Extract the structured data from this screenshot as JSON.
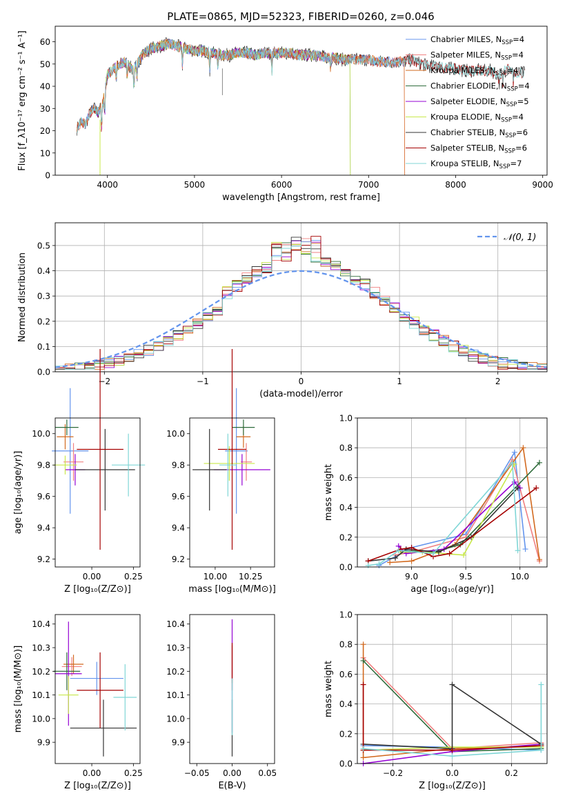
{
  "colors": {
    "Chabrier MILES": "#6495ed",
    "Salpeter MILES": "#f08080",
    "Kroupa MILES": "#d2691e",
    "Chabrier ELODIE": "#2e6b3a",
    "Salpeter ELODIE": "#9400d3",
    "Kroupa ELODIE": "#c8e84a",
    "Chabrier STELIB": "#333333",
    "Salpeter STELIB": "#a50000",
    "Kroupa STELIB": "#7fd6d6"
  },
  "title": "PLATE=0865, MJD=52323, FIBERID=0260, z=0.046",
  "chart_data": [
    {
      "id": "spectrum",
      "type": "line",
      "xlabel": "wavelength [Angstrom, rest frame]",
      "ylabel": "Flux [f_λ10⁻¹⁷ erg cm⁻² s⁻¹ A⁻¹]",
      "xlim": [
        3400,
        9050
      ],
      "ylim": [
        0,
        67
      ],
      "xticks": [
        4000,
        5000,
        6000,
        7000,
        8000,
        9000
      ],
      "yticks": [
        0,
        10,
        20,
        30,
        40,
        50,
        60
      ],
      "legend_position": "top-right",
      "series_envelope": {
        "x": [
          3650,
          3700,
          3750,
          3800,
          3850,
          3900,
          3950,
          4000,
          4100,
          4200,
          4300,
          4400,
          4500,
          4600,
          4700,
          4800,
          4900,
          5000,
          5100,
          5200,
          5300,
          5400,
          5500,
          5600,
          5700,
          5800,
          5900,
          6000,
          6100,
          6200,
          6300,
          6400,
          6500,
          6600,
          6700,
          6800,
          6900,
          7000,
          7100,
          7200,
          7300,
          7400,
          7500,
          7600,
          7700,
          7800,
          7900,
          8000,
          8100,
          8200,
          8300,
          8400,
          8500,
          8600,
          8700,
          8800
        ],
        "y": [
          21,
          24,
          23,
          28,
          30,
          28,
          33,
          45,
          49,
          51,
          47,
          54,
          57,
          58,
          59,
          58,
          57,
          56,
          56,
          55,
          54,
          54,
          55,
          55,
          54,
          55,
          55,
          55,
          55,
          54,
          54,
          54,
          53,
          53,
          52,
          52,
          52,
          52,
          51,
          51,
          51,
          51,
          52,
          50,
          49,
          49,
          48,
          48,
          47,
          47,
          47,
          47,
          45,
          48,
          46,
          46
        ]
      },
      "legend": [
        {
          "name": "Chabrier MILES",
          "n_ssp": "4"
        },
        {
          "name": "Salpeter MILES",
          "n_ssp": "4"
        },
        {
          "name": "Kroupa MILES",
          "n_ssp": "4"
        },
        {
          "name": "Chabrier ELODIE",
          "n_ssp": "4"
        },
        {
          "name": "Salpeter ELODIE",
          "n_ssp": "5"
        },
        {
          "name": "Kroupa ELODIE",
          "n_ssp": "4"
        },
        {
          "name": "Chabrier STELIB",
          "n_ssp": "6"
        },
        {
          "name": "Salpeter STELIB",
          "n_ssp": "6"
        },
        {
          "name": "Kroupa STELIB",
          "n_ssp": "7"
        }
      ]
    },
    {
      "id": "residuals",
      "type": "line",
      "xlabel": "(data-model)/error",
      "ylabel": "Normed distribution",
      "xlim": [
        -2.5,
        2.5
      ],
      "ylim": [
        0,
        0.59
      ],
      "xticks": [
        -2,
        -1,
        0,
        1,
        2
      ],
      "yticks": [
        0.0,
        0.1,
        0.2,
        0.3,
        0.4,
        0.5
      ],
      "grid": true,
      "legend_position": "top-right",
      "legend": [
        {
          "name": "𝒩(0, 1)",
          "color": "#6495ed",
          "style": "dashed"
        }
      ],
      "bins_start": -2.5,
      "bin_width": 0.1
    },
    {
      "id": "age-Z",
      "type": "errorbar",
      "xlabel": "Z [log₁₀(Z/Z⊙)]",
      "ylabel": "age  [log₁₀(age/yr)]",
      "xlim": [
        -0.22,
        0.29
      ],
      "ylim": [
        9.15,
        10.1
      ],
      "xticks": [
        0.0,
        0.25
      ],
      "yticks": [
        9.2,
        9.4,
        9.6,
        9.8,
        10.0
      ],
      "points": [
        {
          "series": "Chabrier MILES",
          "x": -0.13,
          "y": 9.89,
          "xerr": 0.11,
          "yerr": 0.4
        },
        {
          "series": "Salpeter MILES",
          "x": -0.11,
          "y": 9.82,
          "xerr": 0.06,
          "yerr": 0.12
        },
        {
          "series": "Kroupa MILES",
          "x": -0.16,
          "y": 9.98,
          "xerr": 0.05,
          "yerr": 0.08
        },
        {
          "series": "Chabrier ELODIE",
          "x": -0.15,
          "y": 10.04,
          "xerr": 0.07,
          "yerr": 0.05
        },
        {
          "series": "Salpeter ELODIE",
          "x": -0.1,
          "y": 9.77,
          "xerr": 0.06,
          "yerr": 0.1
        },
        {
          "series": "Kroupa ELODIE",
          "x": -0.16,
          "y": 9.8,
          "xerr": 0.07,
          "yerr": 0.06
        },
        {
          "series": "Chabrier STELIB",
          "x": 0.08,
          "y": 9.77,
          "xerr": 0.18,
          "yerr": 0.26
        },
        {
          "series": "Salpeter STELIB",
          "x": 0.05,
          "y": 9.9,
          "xerr": 0.14,
          "yerr": 0.64
        },
        {
          "series": "Kroupa STELIB",
          "x": 0.22,
          "y": 9.8,
          "xerr": 0.1,
          "yerr": 0.2
        }
      ]
    },
    {
      "id": "age-mass",
      "type": "errorbar",
      "xlabel": "mass [log₁₀(M/M⊙)]",
      "ylabel": "",
      "xlim": [
        9.82,
        10.42
      ],
      "ylim": [
        9.15,
        10.1
      ],
      "xticks": [
        10.0,
        10.25
      ],
      "yticks": [
        9.2,
        9.4,
        9.6,
        9.8,
        10.0
      ],
      "points": [
        {
          "series": "Chabrier MILES",
          "x": 10.15,
          "y": 9.89,
          "xerr": 0.08,
          "yerr": 0.4
        },
        {
          "series": "Salpeter MILES",
          "x": 10.22,
          "y": 9.82,
          "xerr": 0.04,
          "yerr": 0.12
        },
        {
          "series": "Kroupa MILES",
          "x": 10.2,
          "y": 9.98,
          "xerr": 0.05,
          "yerr": 0.07
        },
        {
          "series": "Chabrier ELODIE",
          "x": 10.2,
          "y": 10.04,
          "xerr": 0.08,
          "yerr": 0.05
        },
        {
          "series": "Salpeter ELODIE",
          "x": 10.19,
          "y": 9.77,
          "xerr": 0.2,
          "yerr": 0.1
        },
        {
          "series": "Kroupa ELODIE",
          "x": 10.1,
          "y": 9.81,
          "xerr": 0.18,
          "yerr": 0.11
        },
        {
          "series": "Chabrier STELIB",
          "x": 9.96,
          "y": 9.77,
          "xerr": 0.12,
          "yerr": 0.26
        },
        {
          "series": "Salpeter STELIB",
          "x": 10.12,
          "y": 9.9,
          "xerr": 0.1,
          "yerr": 0.64
        },
        {
          "series": "Kroupa STELIB",
          "x": 10.09,
          "y": 9.8,
          "xerr": 0.06,
          "yerr": 0.2
        }
      ]
    },
    {
      "id": "weights-age",
      "type": "line",
      "xlabel": "age  [log₁₀(age/yr)]",
      "ylabel": "mass weight",
      "xlim": [
        8.5,
        10.25
      ],
      "ylim": [
        0,
        1.0
      ],
      "xticks": [
        9.0,
        9.5,
        10.0
      ],
      "yticks": [
        0.0,
        0.2,
        0.4,
        0.6,
        0.8,
        1.0
      ],
      "grid": true,
      "series": [
        {
          "name": "Chabrier MILES",
          "x": [
            8.7,
            9.0,
            9.5,
            9.95,
            10.05
          ],
          "y": [
            0.01,
            0.13,
            0.22,
            0.77,
            0.12
          ]
        },
        {
          "name": "Salpeter MILES",
          "x": [
            8.85,
            9.0,
            9.5,
            9.93,
            10.18
          ],
          "y": [
            0.08,
            0.1,
            0.2,
            0.72,
            0.04
          ]
        },
        {
          "name": "Kroupa MILES",
          "x": [
            8.8,
            9.0,
            9.4,
            10.03,
            10.18
          ],
          "y": [
            0.03,
            0.04,
            0.15,
            0.8,
            0.05
          ]
        },
        {
          "name": "Chabrier ELODIE",
          "x": [
            8.9,
            9.2,
            9.45,
            10.18
          ],
          "y": [
            0.11,
            0.1,
            0.15,
            0.7
          ]
        },
        {
          "name": "Salpeter ELODIE",
          "x": [
            8.88,
            8.95,
            9.3,
            9.95,
            10.0
          ],
          "y": [
            0.14,
            0.09,
            0.12,
            0.57,
            0.53
          ]
        },
        {
          "name": "Kroupa ELODIE",
          "x": [
            8.9,
            9.1,
            9.48,
            9.95
          ],
          "y": [
            0.1,
            0.1,
            0.08,
            0.69
          ]
        },
        {
          "name": "Chabrier STELIB",
          "x": [
            8.6,
            8.85,
            8.95,
            9.25,
            9.55,
            9.98
          ],
          "y": [
            0.04,
            0.06,
            0.12,
            0.1,
            0.2,
            0.53
          ]
        },
        {
          "name": "Salpeter STELIB",
          "x": [
            8.6,
            8.9,
            9.0,
            9.2,
            9.35,
            10.15
          ],
          "y": [
            0.04,
            0.12,
            0.13,
            0.07,
            0.09,
            0.53
          ]
        },
        {
          "name": "Kroupa STELIB",
          "x": [
            8.6,
            8.7,
            8.88,
            9.2,
            9.93,
            9.98
          ],
          "y": [
            0.01,
            0.02,
            0.11,
            0.09,
            0.7,
            0.11
          ]
        }
      ]
    },
    {
      "id": "mass-Z",
      "type": "errorbar",
      "xlabel": "Z [log₁₀(Z/Z⊙)]",
      "ylabel": "mass [log₁₀(M/M⊙)]",
      "xlim": [
        -0.22,
        0.29
      ],
      "ylim": [
        9.81,
        10.44
      ],
      "xticks": [
        0.0,
        0.25
      ],
      "yticks": [
        9.9,
        10.0,
        10.1,
        10.2,
        10.3,
        10.4
      ],
      "points": [
        {
          "series": "Chabrier MILES",
          "x": 0.03,
          "y": 10.17,
          "xerr": 0.16,
          "yerr": 0.07
        },
        {
          "series": "Salpeter MILES",
          "x": -0.12,
          "y": 10.22,
          "xerr": 0.06,
          "yerr": 0.04
        },
        {
          "series": "Kroupa MILES",
          "x": -0.11,
          "y": 10.23,
          "xerr": 0.06,
          "yerr": 0.04
        },
        {
          "series": "Chabrier ELODIE",
          "x": -0.15,
          "y": 10.2,
          "xerr": 0.08,
          "yerr": 0.08
        },
        {
          "series": "Salpeter ELODIE",
          "x": -0.14,
          "y": 10.19,
          "xerr": 0.08,
          "yerr": 0.22
        },
        {
          "series": "Kroupa ELODIE",
          "x": -0.14,
          "y": 10.1,
          "xerr": 0.06,
          "yerr": 0.08
        },
        {
          "series": "Chabrier STELIB",
          "x": 0.07,
          "y": 9.96,
          "xerr": 0.2,
          "yerr": 0.12
        },
        {
          "series": "Salpeter STELIB",
          "x": 0.05,
          "y": 10.12,
          "xerr": 0.14,
          "yerr": 0.16
        },
        {
          "series": "Kroupa STELIB",
          "x": 0.2,
          "y": 10.09,
          "xerr": 0.07,
          "yerr": 0.14
        }
      ]
    },
    {
      "id": "mass-EBV",
      "type": "errorbar",
      "xlabel": "E(B-V)",
      "ylabel": "",
      "xlim": [
        -0.06,
        0.06
      ],
      "ylim": [
        9.81,
        10.44
      ],
      "xticks": [
        -0.05,
        0.0,
        0.05
      ],
      "yticks": [
        9.9,
        10.0,
        10.1,
        10.2,
        10.3,
        10.4
      ],
      "points": [
        {
          "series": "Salpeter ELODIE",
          "x": 0.0,
          "y": 10.18,
          "xerr": 0,
          "yerr": 0.24
        },
        {
          "series": "Kroupa MILES",
          "x": 0.0,
          "y": 10.23,
          "xerr": 0,
          "yerr": 0.08
        },
        {
          "series": "Salpeter STELIB",
          "x": 0.0,
          "y": 10.22,
          "xerr": 0,
          "yerr": 0.1
        },
        {
          "series": "Chabrier STELIB",
          "x": 0.0,
          "y": 9.96,
          "xerr": 0,
          "yerr": 0.12
        },
        {
          "series": "Kroupa STELIB",
          "x": 0.0,
          "y": 10.05,
          "xerr": 0,
          "yerr": 0.12
        }
      ]
    },
    {
      "id": "weights-Z",
      "type": "line",
      "xlabel": "Z [log₁₀(Z/Z⊙)]",
      "ylabel": "mass weight",
      "xlim": [
        -0.32,
        0.32
      ],
      "ylim": [
        0,
        1.0
      ],
      "xticks": [
        -0.2,
        0.0,
        0.2
      ],
      "yticks": [
        0.0,
        0.2,
        0.4,
        0.6,
        0.8,
        1.0
      ],
      "grid": true,
      "series": [
        {
          "name": "Chabrier MILES",
          "x": [
            -0.3,
            0.0,
            0.3
          ],
          "y": [
            0.12,
            0.11,
            0.09
          ]
        },
        {
          "name": "Salpeter MILES",
          "x": [
            -0.3,
            0.0,
            0.3
          ],
          "y": [
            0.71,
            0.1,
            0.14
          ]
        },
        {
          "name": "Kroupa MILES",
          "x": [
            -0.3,
            -0.3,
            0.0,
            0.3
          ],
          "y": [
            0.8,
            0.04,
            0.1,
            0.12
          ]
        },
        {
          "name": "Chabrier ELODIE",
          "x": [
            -0.3,
            0.0,
            0.3
          ],
          "y": [
            0.69,
            0.08,
            0.1
          ]
        },
        {
          "name": "Salpeter ELODIE",
          "x": [
            -0.3,
            0.0,
            0.3
          ],
          "y": [
            0.0,
            0.08,
            0.13
          ]
        },
        {
          "name": "Kroupa ELODIE",
          "x": [
            -0.3,
            0.0,
            0.3
          ],
          "y": [
            0.09,
            0.11,
            0.11
          ]
        },
        {
          "name": "Chabrier STELIB",
          "x": [
            -0.3,
            0.0,
            0.0,
            0.3
          ],
          "y": [
            0.13,
            0.1,
            0.53,
            0.13
          ]
        },
        {
          "name": "Salpeter STELIB",
          "x": [
            -0.3,
            -0.3,
            0.0,
            0.3
          ],
          "y": [
            0.53,
            0.09,
            0.09,
            0.12
          ]
        },
        {
          "name": "Kroupa STELIB",
          "x": [
            -0.3,
            0.0,
            0.3,
            0.3
          ],
          "y": [
            0.1,
            0.05,
            0.09,
            0.53
          ]
        }
      ]
    }
  ]
}
